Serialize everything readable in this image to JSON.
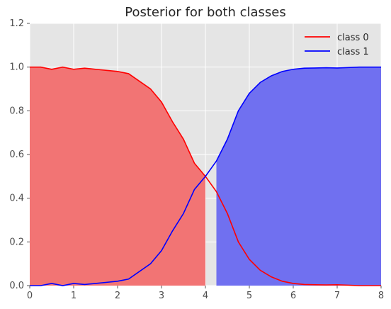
{
  "chart_data": {
    "type": "area",
    "title": "Posterior for both classes",
    "xlabel": "",
    "ylabel": "",
    "xlim": [
      0,
      8
    ],
    "ylim": [
      0,
      1.2
    ],
    "xticks": [
      "0",
      "1",
      "2",
      "3",
      "4",
      "5",
      "6",
      "7",
      "8"
    ],
    "yticks": [
      "0.0",
      "0.2",
      "0.4",
      "0.6",
      "0.8",
      "1.0",
      "1.2"
    ],
    "grid": true,
    "legend_position": "top-right",
    "x": [
      0,
      0.25,
      0.5,
      0.75,
      1.0,
      1.25,
      1.5,
      1.75,
      2.0,
      2.25,
      2.5,
      2.75,
      3.0,
      3.25,
      3.5,
      3.75,
      4.0,
      4.25,
      4.5,
      4.75,
      5.0,
      5.25,
      5.5,
      5.75,
      6.0,
      6.25,
      6.5,
      6.75,
      7.0,
      7.25,
      7.5,
      7.75,
      8.0
    ],
    "series": [
      {
        "name": "class 0",
        "color": "#ff0000",
        "fill": "#f27474",
        "values": [
          1.0,
          1.0,
          0.99,
          1.0,
          0.99,
          0.995,
          0.99,
          0.985,
          0.98,
          0.97,
          0.935,
          0.9,
          0.84,
          0.75,
          0.67,
          0.56,
          0.5,
          0.43,
          0.33,
          0.2,
          0.12,
          0.07,
          0.04,
          0.02,
          0.01,
          0.005,
          0.004,
          0.003,
          0.004,
          0.002,
          0.0,
          0.0,
          0.0
        ]
      },
      {
        "name": "class 1",
        "color": "#0000ff",
        "fill": "#7070f0",
        "values": [
          0.0,
          0.0,
          0.01,
          0.0,
          0.01,
          0.005,
          0.01,
          0.015,
          0.02,
          0.03,
          0.065,
          0.1,
          0.16,
          0.25,
          0.33,
          0.44,
          0.5,
          0.57,
          0.67,
          0.8,
          0.88,
          0.93,
          0.96,
          0.98,
          0.99,
          0.995,
          0.996,
          0.997,
          0.996,
          0.998,
          1.0,
          1.0,
          1.0
        ]
      }
    ]
  }
}
